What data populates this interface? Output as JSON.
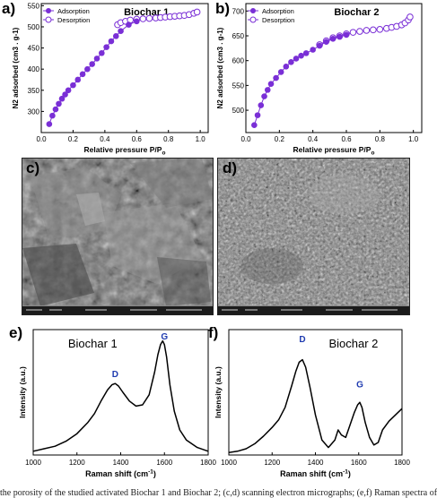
{
  "panels": {
    "a": {
      "letter": "a)"
    },
    "b": {
      "letter": "b)"
    },
    "c": {
      "letter": "c)"
    },
    "d": {
      "letter": "d)"
    },
    "e": {
      "letter": "e)"
    },
    "f": {
      "letter": "f)"
    }
  },
  "colors": {
    "adsorption": "#7a2fd6",
    "desorption": "#7a2fd6",
    "raman_line": "#000000",
    "peak_label": "#1f3bb0"
  },
  "chart_data": [
    {
      "id": "a",
      "type": "scatter",
      "title": "Biochar 1",
      "xlabel": "Relative pressure P/P",
      "xlabel_subscript": "o",
      "ylabel": "N2 adsorbed (cm3 . g-1)",
      "xlim": [
        0.0,
        1.05
      ],
      "ylim": [
        250,
        555
      ],
      "xticks": [
        "0.0",
        "0.2",
        "0.4",
        "0.6",
        "0.8",
        "1.0"
      ],
      "yticks": [
        "300",
        "350",
        "400",
        "450",
        "500",
        "550"
      ],
      "legend": "top-left",
      "series": [
        {
          "name": "Adsorption",
          "marker": "filled-circle",
          "x": [
            0.05,
            0.07,
            0.09,
            0.11,
            0.13,
            0.15,
            0.17,
            0.2,
            0.23,
            0.26,
            0.29,
            0.32,
            0.35,
            0.38,
            0.41,
            0.44,
            0.47,
            0.5,
            0.55,
            0.6
          ],
          "y": [
            270,
            290,
            305,
            318,
            330,
            340,
            350,
            362,
            375,
            388,
            400,
            412,
            425,
            438,
            452,
            466,
            478,
            490,
            505,
            513
          ]
        },
        {
          "name": "Desorption",
          "marker": "open-circle",
          "x": [
            0.48,
            0.5,
            0.53,
            0.56,
            0.6,
            0.64,
            0.68,
            0.72,
            0.75,
            0.78,
            0.81,
            0.84,
            0.87,
            0.9,
            0.93,
            0.96,
            0.98
          ],
          "y": [
            505,
            510,
            513,
            516,
            518,
            519,
            520,
            521,
            522,
            523,
            524,
            525,
            526,
            527,
            529,
            532,
            535
          ]
        }
      ]
    },
    {
      "id": "b",
      "type": "scatter",
      "title": "Biochar 2",
      "xlabel": "Relative pressure P/P",
      "xlabel_subscript": "o",
      "ylabel": "N2 adsorbed (cm3 . g-1)",
      "xlim": [
        0.0,
        1.05
      ],
      "ylim": [
        455,
        715
      ],
      "xticks": [
        "0.0",
        "0.2",
        "0.4",
        "0.6",
        "0.8",
        "1.0"
      ],
      "yticks": [
        "500",
        "550",
        "600",
        "650",
        "700"
      ],
      "legend": "top-left",
      "series": [
        {
          "name": "Adsorption",
          "marker": "filled-circle",
          "x": [
            0.05,
            0.07,
            0.09,
            0.11,
            0.13,
            0.15,
            0.18,
            0.21,
            0.24,
            0.27,
            0.3,
            0.33,
            0.36,
            0.4,
            0.44,
            0.48,
            0.52,
            0.56,
            0.6
          ],
          "y": [
            470,
            490,
            510,
            528,
            541,
            553,
            565,
            577,
            588,
            597,
            604,
            610,
            615,
            622,
            630,
            638,
            644,
            648,
            652
          ]
        },
        {
          "name": "Desorption",
          "marker": "open-circle",
          "x": [
            0.44,
            0.48,
            0.52,
            0.56,
            0.6,
            0.64,
            0.68,
            0.72,
            0.76,
            0.8,
            0.84,
            0.87,
            0.9,
            0.93,
            0.95,
            0.97,
            0.98
          ],
          "y": [
            632,
            640,
            646,
            650,
            654,
            657,
            659,
            661,
            662,
            663,
            665,
            667,
            669,
            672,
            676,
            682,
            688
          ]
        }
      ]
    },
    {
      "id": "e",
      "type": "line",
      "title": "Biochar 1",
      "xlabel": "Raman shift (cm",
      "xlabel_superscript": "-1",
      "xlabel_close": ")",
      "ylabel": "Intensity (a.u.)",
      "xlim": [
        1000,
        1800
      ],
      "ylim": [
        0,
        100
      ],
      "xticks": [
        "1000",
        "1200",
        "1400",
        "1600",
        "1800"
      ],
      "peak_labels": [
        {
          "text": "D",
          "x": 1375,
          "y": 62
        },
        {
          "text": "G",
          "x": 1600,
          "y": 92
        }
      ],
      "series": [
        {
          "x": [
            1000,
            1050,
            1100,
            1150,
            1200,
            1250,
            1280,
            1310,
            1340,
            1360,
            1375,
            1390,
            1410,
            1440,
            1470,
            1500,
            1530,
            1555,
            1570,
            1582,
            1592,
            1600,
            1610,
            1625,
            1645,
            1670,
            1700,
            1750,
            1800
          ],
          "y": [
            3,
            5,
            7,
            11,
            17,
            26,
            33,
            43,
            52,
            56,
            57,
            55,
            50,
            43,
            39,
            40,
            48,
            66,
            80,
            88,
            91,
            88,
            78,
            56,
            35,
            20,
            12,
            6,
            3
          ]
        }
      ]
    },
    {
      "id": "f",
      "type": "line",
      "title": "Biochar 2",
      "xlabel": "Raman shift (cm",
      "xlabel_superscript": "-1",
      "xlabel_close": ")",
      "ylabel": "Intensity (a.u.)",
      "xlim": [
        1000,
        1800
      ],
      "ylim": [
        0,
        100
      ],
      "xticks": [
        "1000",
        "1200",
        "1400",
        "1600",
        "1800"
      ],
      "peak_labels": [
        {
          "text": "D",
          "x": 1340,
          "y": 90
        },
        {
          "text": "G",
          "x": 1605,
          "y": 54
        }
      ],
      "series": [
        {
          "x": [
            1000,
            1040,
            1080,
            1120,
            1160,
            1200,
            1230,
            1260,
            1290,
            1310,
            1325,
            1340,
            1355,
            1375,
            1400,
            1430,
            1460,
            1490,
            1505,
            1520,
            1540,
            1560,
            1580,
            1595,
            1605,
            1615,
            1630,
            1650,
            1670,
            1690,
            1710,
            1740,
            1770,
            1800
          ],
          "y": [
            2,
            3,
            5,
            9,
            15,
            22,
            28,
            38,
            55,
            67,
            74,
            76,
            70,
            54,
            32,
            12,
            6,
            12,
            20,
            16,
            14,
            24,
            34,
            40,
            42,
            38,
            26,
            14,
            8,
            10,
            20,
            27,
            32,
            37
          ]
        }
      ]
    }
  ],
  "caption": {
    "text": "the porosity of the studied activated Biochar 1 and Biochar 2; (c,d) scanning electron micrographs; (e,f) Raman spectra of"
  }
}
